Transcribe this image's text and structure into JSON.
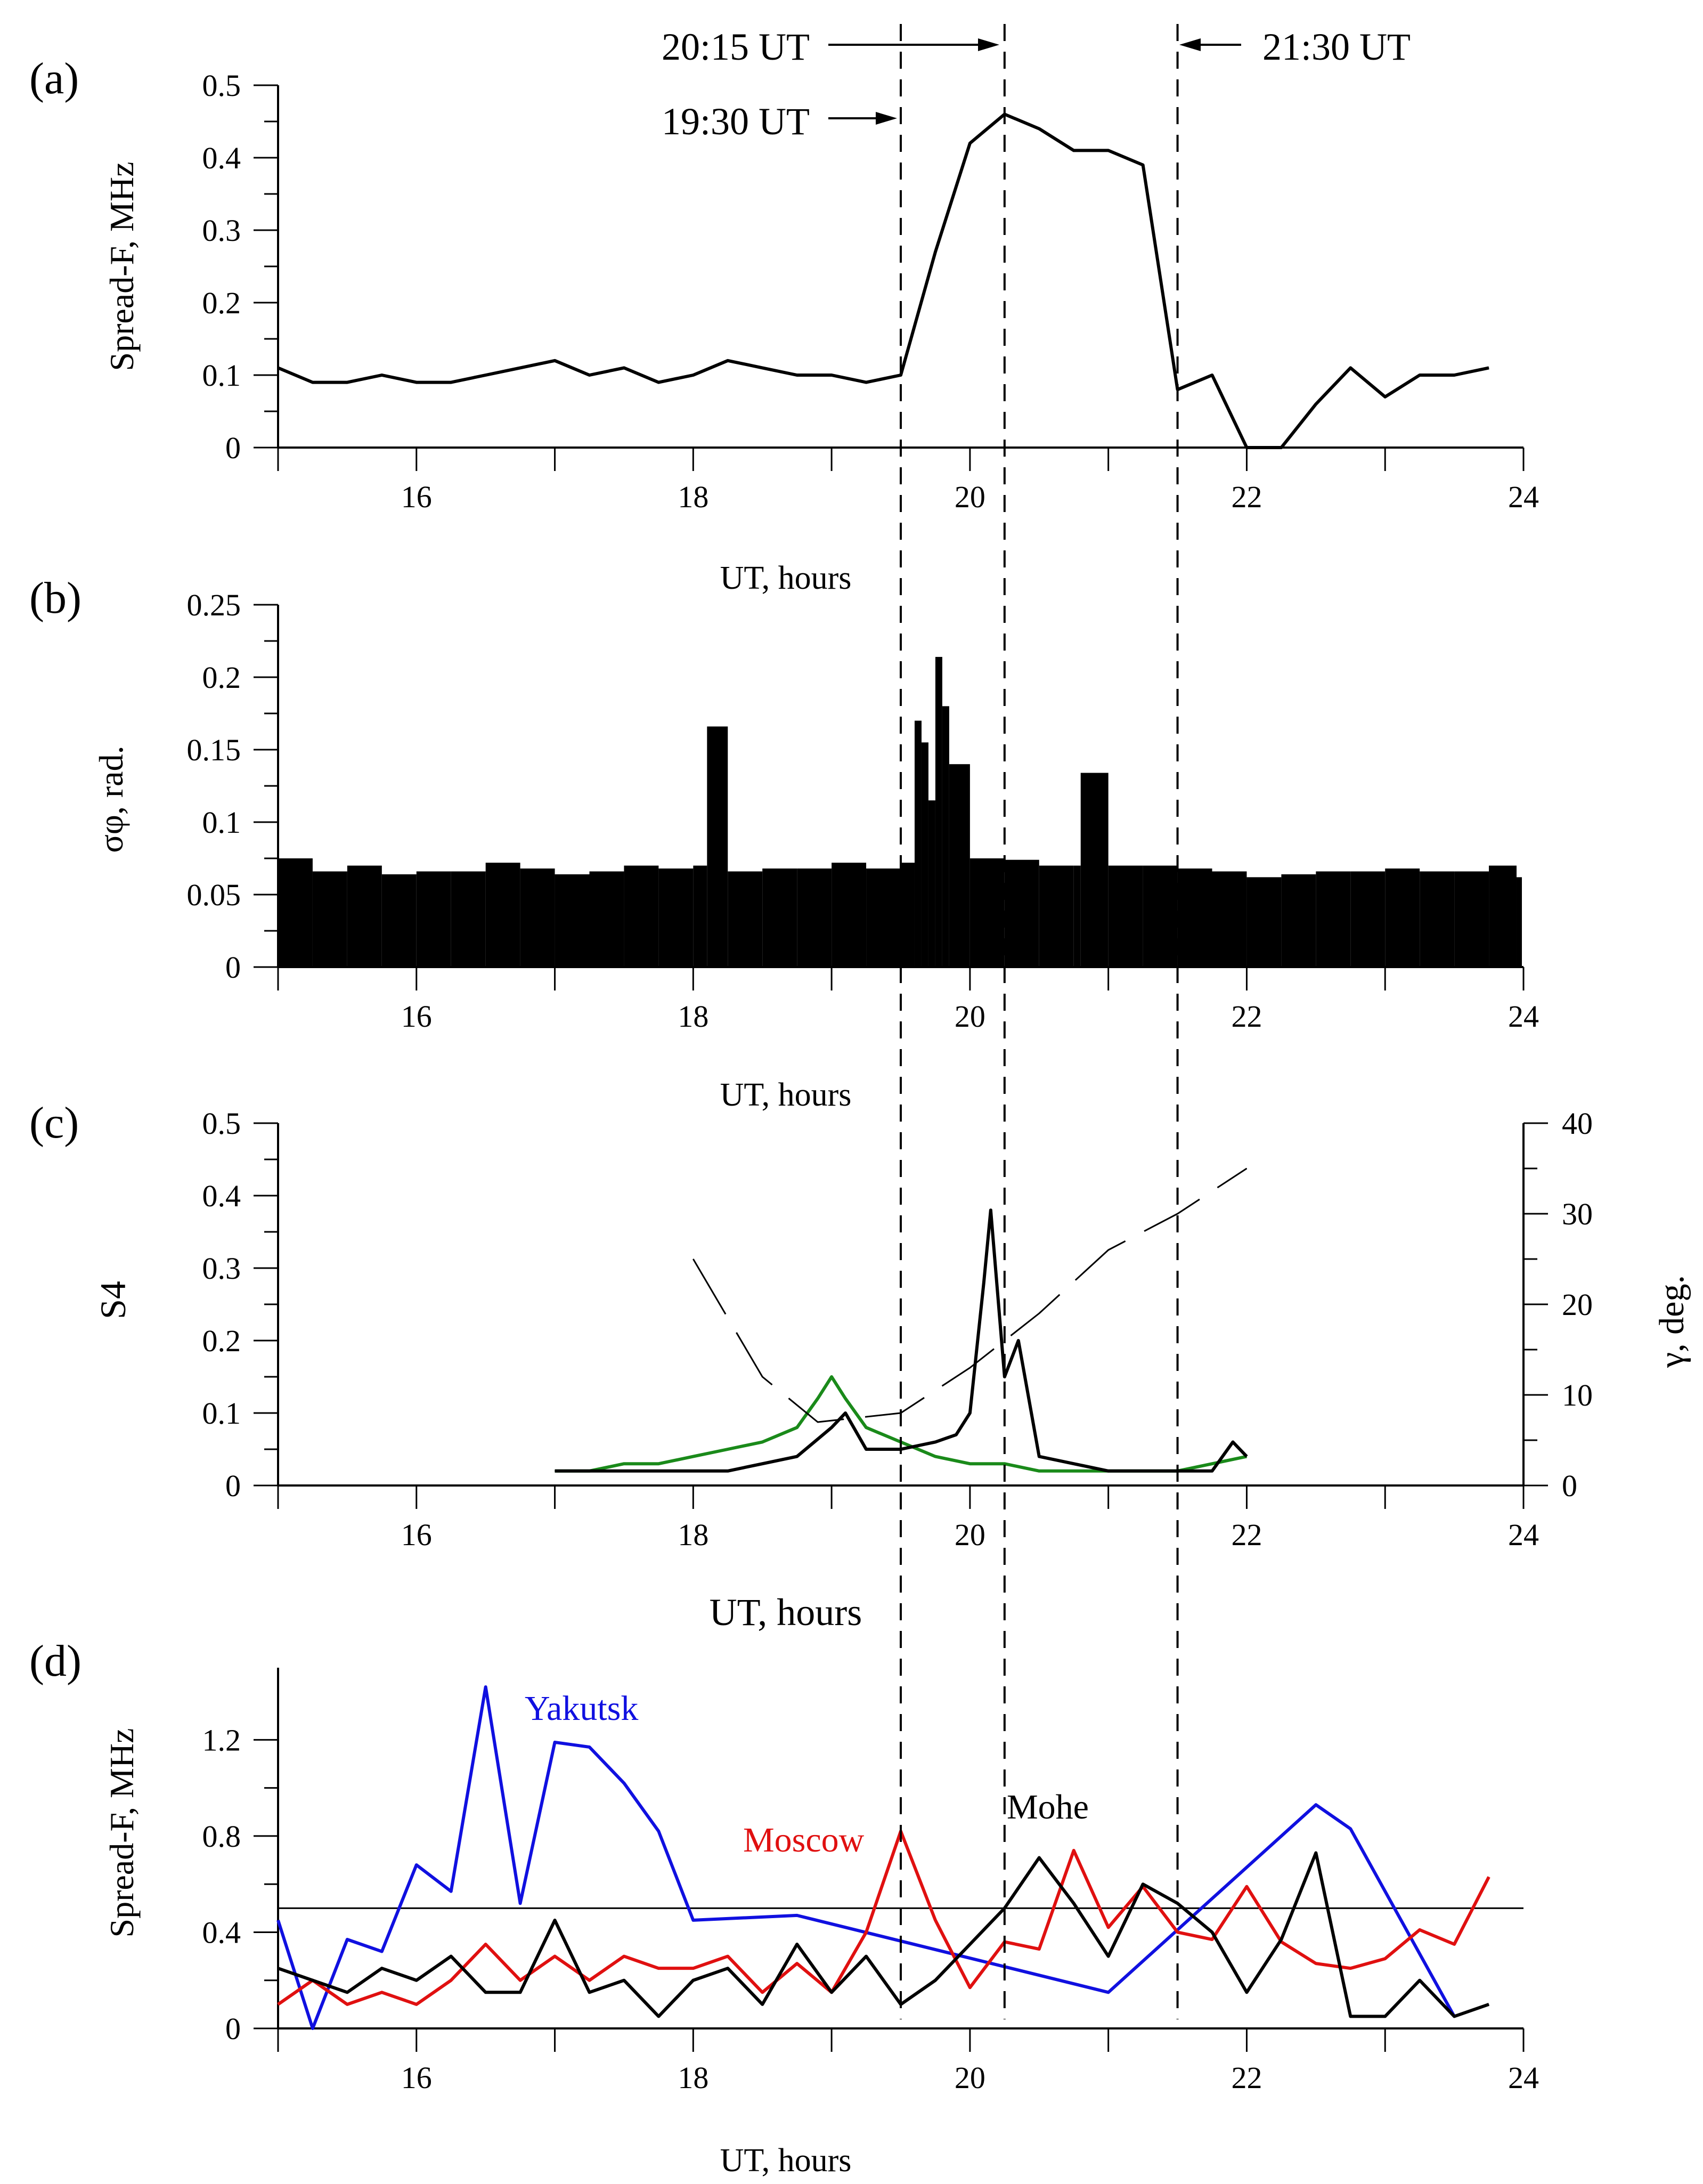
{
  "annotations": [
    {
      "text": "20:15 UT",
      "x": 20.25,
      "arrow": "right"
    },
    {
      "text": "19:30 UT",
      "x": 19.5,
      "arrow": "right"
    },
    {
      "text": "21:30 UT",
      "x": 21.5,
      "arrow": "left"
    }
  ],
  "chart_data": [
    {
      "panel": "(a)",
      "type": "line",
      "title": "",
      "xlabel": "UT, hours",
      "ylabel": "Spread-F, MHz",
      "xlim": [
        15,
        24
      ],
      "ylim": [
        0,
        0.5
      ],
      "xticks": [
        16,
        18,
        20,
        22,
        24
      ],
      "yticks": [
        0,
        0.1,
        0.2,
        0.3,
        0.4,
        0.5
      ],
      "ytick_labels": [
        "0",
        "0.1",
        "0.2",
        "0.3",
        "0.4",
        "0.5"
      ],
      "vlines": [
        19.5,
        20.25,
        21.5
      ],
      "series": [
        {
          "name": "Spread-F",
          "color": "#000000",
          "x": [
            15.0,
            15.25,
            15.5,
            15.75,
            16.0,
            16.25,
            16.5,
            16.75,
            17.0,
            17.25,
            17.5,
            17.75,
            18.0,
            18.25,
            18.5,
            18.75,
            19.0,
            19.25,
            19.5,
            19.75,
            20.0,
            20.25,
            20.5,
            20.75,
            21.0,
            21.25,
            21.5,
            21.75,
            22.0,
            22.25,
            22.5,
            22.75,
            23.0,
            23.25,
            23.5,
            23.75
          ],
          "values": [
            0.11,
            0.09,
            0.09,
            0.1,
            0.09,
            0.09,
            0.1,
            0.11,
            0.12,
            0.1,
            0.11,
            0.09,
            0.1,
            0.12,
            0.11,
            0.1,
            0.1,
            0.09,
            0.1,
            0.27,
            0.42,
            0.46,
            0.44,
            0.41,
            0.41,
            0.39,
            0.08,
            0.1,
            0.0,
            0.0,
            0.06,
            0.11,
            0.07,
            0.1,
            0.1,
            0.11
          ]
        }
      ]
    },
    {
      "panel": "(b)",
      "type": "bar",
      "title": "",
      "xlabel": "UT, hours",
      "ylabel": "σφ, rad.",
      "xlim": [
        15,
        24
      ],
      "ylim": [
        0,
        0.25
      ],
      "xticks": [
        16,
        18,
        20,
        22,
        24
      ],
      "yticks": [
        0,
        0.05,
        0.1,
        0.15,
        0.2,
        0.25
      ],
      "ytick_labels": [
        "0",
        "0.05",
        "0.1",
        "0.15",
        "0.2",
        "0.25"
      ],
      "vlines": [
        19.5,
        20.25,
        21.5
      ],
      "series": [
        {
          "name": "σφ",
          "color": "#000000",
          "x": [
            15.0,
            15.25,
            15.5,
            15.75,
            16.0,
            16.25,
            16.5,
            16.75,
            17.0,
            17.25,
            17.5,
            17.75,
            18.0,
            18.1,
            18.25,
            18.5,
            18.75,
            19.0,
            19.25,
            19.5,
            19.6,
            19.65,
            19.7,
            19.75,
            19.8,
            19.85,
            20.0,
            20.25,
            20.5,
            20.75,
            20.8,
            21.0,
            21.25,
            21.5,
            21.75,
            22.0,
            22.25,
            22.5,
            22.75,
            23.0,
            23.25,
            23.5,
            23.75,
            23.95
          ],
          "values": [
            0.075,
            0.066,
            0.07,
            0.064,
            0.066,
            0.066,
            0.072,
            0.068,
            0.064,
            0.066,
            0.07,
            0.068,
            0.07,
            0.166,
            0.066,
            0.068,
            0.068,
            0.072,
            0.068,
            0.072,
            0.17,
            0.155,
            0.115,
            0.214,
            0.18,
            0.14,
            0.075,
            0.074,
            0.07,
            0.07,
            0.134,
            0.07,
            0.07,
            0.068,
            0.066,
            0.062,
            0.064,
            0.066,
            0.066,
            0.068,
            0.066,
            0.066,
            0.07,
            0.062
          ]
        }
      ]
    },
    {
      "panel": "(c)",
      "type": "line",
      "title": "",
      "xlabel": "UT, hours",
      "ylabel": "S4",
      "y2label": "γ, deg.",
      "xlim": [
        15,
        24
      ],
      "ylim": [
        0,
        0.5
      ],
      "y2lim": [
        0,
        40
      ],
      "xticks": [
        16,
        18,
        20,
        22,
        24
      ],
      "yticks": [
        0,
        0.1,
        0.2,
        0.3,
        0.4,
        0.5
      ],
      "ytick_labels": [
        "0",
        "0.1",
        "0.2",
        "0.3",
        "0.4",
        "0.5"
      ],
      "y2ticks": [
        0,
        10,
        20,
        30,
        40
      ],
      "y2tick_labels": [
        "0",
        "10",
        "20",
        "30",
        "40"
      ],
      "vlines": [
        19.5,
        20.25,
        21.5
      ],
      "series": [
        {
          "name": "S4 (green)",
          "color": "#1a8a1a",
          "x": [
            17.0,
            17.25,
            17.5,
            17.75,
            18.0,
            18.25,
            18.5,
            18.75,
            18.9,
            19.0,
            19.1,
            19.25,
            19.5,
            19.75,
            20.0,
            20.25,
            20.5,
            20.75,
            21.0,
            21.25,
            21.5,
            21.75,
            22.0
          ],
          "values": [
            0.02,
            0.02,
            0.03,
            0.03,
            0.04,
            0.05,
            0.06,
            0.08,
            0.12,
            0.15,
            0.12,
            0.08,
            0.06,
            0.04,
            0.03,
            0.03,
            0.02,
            0.02,
            0.02,
            0.02,
            0.02,
            0.03,
            0.04
          ]
        },
        {
          "name": "S4 (black)",
          "color": "#000000",
          "x": [
            17.0,
            17.25,
            17.5,
            17.75,
            18.0,
            18.25,
            18.5,
            18.75,
            19.0,
            19.1,
            19.25,
            19.5,
            19.75,
            19.9,
            20.0,
            20.1,
            20.15,
            20.25,
            20.35,
            20.5,
            20.75,
            21.0,
            21.25,
            21.5,
            21.75,
            21.9,
            22.0
          ],
          "values": [
            0.02,
            0.02,
            0.02,
            0.02,
            0.02,
            0.02,
            0.03,
            0.04,
            0.08,
            0.1,
            0.05,
            0.05,
            0.06,
            0.07,
            0.1,
            0.28,
            0.38,
            0.15,
            0.2,
            0.04,
            0.03,
            0.02,
            0.02,
            0.02,
            0.02,
            0.06,
            0.04
          ]
        },
        {
          "name": "γ",
          "color": "#000000",
          "axis": "right",
          "dashed": true,
          "x": [
            18.0,
            18.5,
            18.9,
            19.5,
            20.0,
            20.5,
            21.0,
            21.5,
            22.0
          ],
          "values": [
            25.0,
            12.0,
            7.0,
            8.0,
            13.0,
            19.0,
            26.0,
            30.0,
            35.0
          ]
        }
      ]
    },
    {
      "panel": "(d)",
      "type": "line",
      "title": "",
      "xlabel": "UT, hours",
      "ylabel": "Spread-F, MHz",
      "xlim": [
        15,
        24
      ],
      "ylim": [
        0,
        1.5
      ],
      "xticks": [
        16,
        18,
        20,
        22,
        24
      ],
      "yticks": [
        0,
        0.4,
        0.8,
        1.2
      ],
      "ytick_labels": [
        "0",
        "0.4",
        "0.8",
        "1.2"
      ],
      "hline": 0.5,
      "vlines": [
        19.5,
        20.25,
        21.5
      ],
      "series": [
        {
          "name": "Yakutsk",
          "color": "#1010e0",
          "x": [
            15.0,
            15.25,
            15.5,
            15.75,
            16.0,
            16.25,
            16.5,
            16.75,
            17.0,
            17.25,
            17.5,
            17.75,
            18.0,
            18.75,
            21.0,
            22.5,
            22.75,
            23.5
          ],
          "values": [
            0.45,
            0.0,
            0.37,
            0.32,
            0.68,
            0.57,
            1.42,
            0.52,
            1.19,
            1.17,
            1.02,
            0.82,
            0.45,
            0.47,
            0.15,
            0.93,
            0.83,
            0.05
          ]
        },
        {
          "name": "Moscow",
          "color": "#e01010",
          "x": [
            15.0,
            15.25,
            15.5,
            15.75,
            16.0,
            16.25,
            16.5,
            16.75,
            17.0,
            17.25,
            17.5,
            17.75,
            18.0,
            18.25,
            18.5,
            18.75,
            19.0,
            19.25,
            19.5,
            19.75,
            20.0,
            20.25,
            20.5,
            20.75,
            21.0,
            21.25,
            21.5,
            21.75,
            22.0,
            22.25,
            22.5,
            22.75,
            23.0,
            23.25,
            23.5,
            23.75
          ],
          "values": [
            0.1,
            0.2,
            0.1,
            0.15,
            0.1,
            0.2,
            0.35,
            0.2,
            0.3,
            0.2,
            0.3,
            0.25,
            0.25,
            0.3,
            0.15,
            0.27,
            0.15,
            0.4,
            0.82,
            0.45,
            0.17,
            0.36,
            0.33,
            0.74,
            0.42,
            0.59,
            0.4,
            0.37,
            0.59,
            0.36,
            0.27,
            0.25,
            0.29,
            0.41,
            0.35,
            0.63
          ]
        },
        {
          "name": "Mohe",
          "color": "#000000",
          "x": [
            15.0,
            15.25,
            15.5,
            15.75,
            16.0,
            16.25,
            16.5,
            16.75,
            17.0,
            17.25,
            17.5,
            17.75,
            18.0,
            18.25,
            18.5,
            18.75,
            19.0,
            19.25,
            19.5,
            19.75,
            20.0,
            20.25,
            20.5,
            20.75,
            21.0,
            21.25,
            21.5,
            21.75,
            22.0,
            22.25,
            22.5,
            22.75,
            23.0,
            23.25,
            23.5,
            23.75
          ],
          "values": [
            0.25,
            0.2,
            0.15,
            0.25,
            0.2,
            0.3,
            0.15,
            0.15,
            0.45,
            0.15,
            0.2,
            0.05,
            0.2,
            0.25,
            0.1,
            0.35,
            0.15,
            0.3,
            0.1,
            0.2,
            0.35,
            0.5,
            0.71,
            0.52,
            0.3,
            0.6,
            0.52,
            0.4,
            0.15,
            0.37,
            0.73,
            0.05,
            0.05,
            0.2,
            0.05,
            0.1
          ]
        }
      ],
      "series_labels": [
        "Yakutsk",
        "Moscow",
        "Mohe"
      ]
    }
  ]
}
